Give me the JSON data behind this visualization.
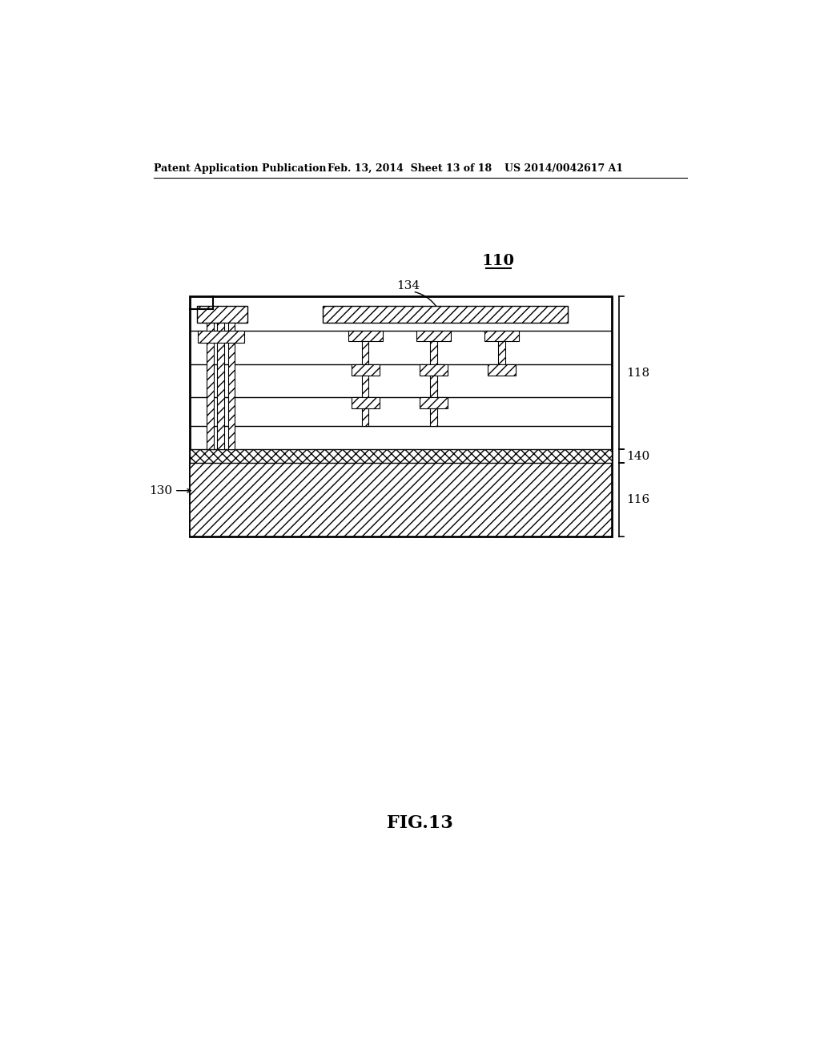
{
  "header_left": "Patent Application Publication",
  "header_mid": "Feb. 13, 2014  Sheet 13 of 18",
  "header_right": "US 2014/0042617 A1",
  "label_110": "110",
  "label_134": "134",
  "label_118": "118",
  "label_140": "140",
  "label_116": "116",
  "label_130": "130",
  "fig_title": "FIG.13",
  "bg_color": "#ffffff",
  "line_color": "#000000"
}
